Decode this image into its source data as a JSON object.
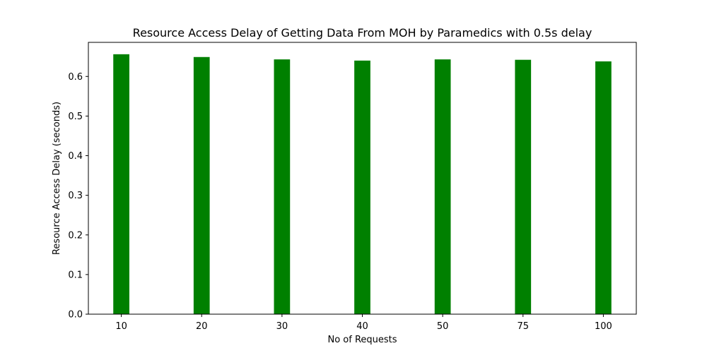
{
  "chart_data": {
    "type": "bar",
    "title": "Resource Access Delay of Getting Data From MOH by Paramedics with 0.5s delay",
    "xlabel": "No of Requests",
    "ylabel": "Resource Access Delay (seconds)",
    "categories": [
      "10",
      "20",
      "30",
      "40",
      "50",
      "75",
      "100"
    ],
    "values": [
      0.656,
      0.649,
      0.643,
      0.64,
      0.643,
      0.642,
      0.638
    ],
    "ylim": [
      0,
      0.686
    ],
    "yticks": [
      "0.0",
      "0.1",
      "0.2",
      "0.3",
      "0.4",
      "0.5",
      "0.6"
    ],
    "bar_color": "#008000",
    "grid": false,
    "legend": false
  }
}
